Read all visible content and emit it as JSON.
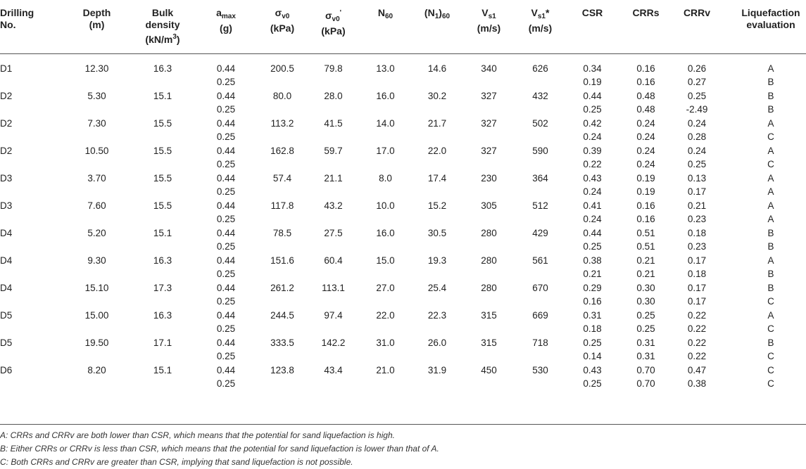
{
  "headers": [
    {
      "main": "Drilling",
      "line2": "No."
    },
    {
      "main": "Depth",
      "line2": "(m)"
    },
    {
      "main": "Bulk",
      "line2": "density",
      "line3": "(kN/m",
      "sup": "3",
      "line3_after": ")"
    },
    {
      "main": "a",
      "sub": "max",
      "line2": "(g)"
    },
    {
      "main": "σ",
      "sub": "v0",
      "line2": "(kPa)"
    },
    {
      "main": "σ",
      "sub": "v0",
      "sup": "'",
      "line2": "(kPa)"
    },
    {
      "main": "N",
      "sub": "60"
    },
    {
      "main": "(N",
      "sub": "1",
      "after": ")",
      "sub2": "60"
    },
    {
      "main": "V",
      "sub": "s1",
      "line2": "(m/s)"
    },
    {
      "main": "V",
      "sub": "s1",
      "after": "*",
      "line2": "(m/s)"
    },
    {
      "main": "CSR"
    },
    {
      "main": "CRRs"
    },
    {
      "main": "CRRv"
    },
    {
      "main": "Liquefaction",
      "line2": "evaluation"
    }
  ],
  "rows": [
    {
      "id": "D1",
      "depth": "12.30",
      "density": "16.3",
      "amax": [
        "0.44",
        "0.25"
      ],
      "sv0": "200.5",
      "sv0p": "79.8",
      "n60": "13.0",
      "n160": "14.6",
      "vs1": "340",
      "vs1s": "626",
      "csr": [
        "0.34",
        "0.19"
      ],
      "crrs": [
        "0.16",
        "0.16"
      ],
      "crrv": [
        "0.26",
        "0.27"
      ],
      "eval": [
        "A",
        "B"
      ]
    },
    {
      "id": "D2",
      "depth": "5.30",
      "density": "15.1",
      "amax": [
        "0.44",
        "0.25"
      ],
      "sv0": "80.0",
      "sv0p": "28.0",
      "n60": "16.0",
      "n160": "30.2",
      "vs1": "327",
      "vs1s": "432",
      "csr": [
        "0.44",
        "0.25"
      ],
      "crrs": [
        "0.48",
        "0.48"
      ],
      "crrv": [
        "0.25",
        "-2.49"
      ],
      "eval": [
        "B",
        "B"
      ]
    },
    {
      "id": "D2",
      "depth": "7.30",
      "density": "15.5",
      "amax": [
        "0.44",
        "0.25"
      ],
      "sv0": "113.2",
      "sv0p": "41.5",
      "n60": "14.0",
      "n160": "21.7",
      "vs1": "327",
      "vs1s": "502",
      "csr": [
        "0.42",
        "0.24"
      ],
      "crrs": [
        "0.24",
        "0.24"
      ],
      "crrv": [
        "0.24",
        "0.28"
      ],
      "eval": [
        "A",
        "C"
      ]
    },
    {
      "id": "D2",
      "depth": "10.50",
      "density": "15.5",
      "amax": [
        "0.44",
        "0.25"
      ],
      "sv0": "162.8",
      "sv0p": "59.7",
      "n60": "17.0",
      "n160": "22.0",
      "vs1": "327",
      "vs1s": "590",
      "csr": [
        "0.39",
        "0.22"
      ],
      "crrs": [
        "0.24",
        "0.24"
      ],
      "crrv": [
        "0.24",
        "0.25"
      ],
      "eval": [
        "A",
        "C"
      ]
    },
    {
      "id": "D3",
      "depth": "3.70",
      "density": "15.5",
      "amax": [
        "0.44",
        "0.25"
      ],
      "sv0": "57.4",
      "sv0p": "21.1",
      "n60": "8.0",
      "n160": "17.4",
      "vs1": "230",
      "vs1s": "364",
      "csr": [
        "0.43",
        "0.24"
      ],
      "crrs": [
        "0.19",
        "0.19"
      ],
      "crrv": [
        "0.13",
        "0.17"
      ],
      "eval": [
        "A",
        "A"
      ]
    },
    {
      "id": "D3",
      "depth": "7.60",
      "density": "15.5",
      "amax": [
        "0.44",
        "0.25"
      ],
      "sv0": "117.8",
      "sv0p": "43.2",
      "n60": "10.0",
      "n160": "15.2",
      "vs1": "305",
      "vs1s": "512",
      "csr": [
        "0.41",
        "0.24"
      ],
      "crrs": [
        "0.16",
        "0.16"
      ],
      "crrv": [
        "0.21",
        "0.23"
      ],
      "eval": [
        "A",
        "A"
      ]
    },
    {
      "id": "D4",
      "depth": "5.20",
      "density": "15.1",
      "amax": [
        "0.44",
        "0.25"
      ],
      "sv0": "78.5",
      "sv0p": "27.5",
      "n60": "16.0",
      "n160": "30.5",
      "vs1": "280",
      "vs1s": "429",
      "csr": [
        "0.44",
        "0.25"
      ],
      "crrs": [
        "0.51",
        "0.51"
      ],
      "crrv": [
        "0.18",
        "0.23"
      ],
      "eval": [
        "B",
        "B"
      ]
    },
    {
      "id": "D4",
      "depth": "9.30",
      "density": "16.3",
      "amax": [
        "0.44",
        "0.25"
      ],
      "sv0": "151.6",
      "sv0p": "60.4",
      "n60": "15.0",
      "n160": "19.3",
      "vs1": "280",
      "vs1s": "561",
      "csr": [
        "0.38",
        "0.21"
      ],
      "crrs": [
        "0.21",
        "0.21"
      ],
      "crrv": [
        "0.17",
        "0.18"
      ],
      "eval": [
        "A",
        "B"
      ]
    },
    {
      "id": "D4",
      "depth": "15.10",
      "density": "17.3",
      "amax": [
        "0.44",
        "0.25"
      ],
      "sv0": "261.2",
      "sv0p": "113.1",
      "n60": "27.0",
      "n160": "25.4",
      "vs1": "280",
      "vs1s": "670",
      "csr": [
        "0.29",
        "0.16"
      ],
      "crrs": [
        "0.30",
        "0.30"
      ],
      "crrv": [
        "0.17",
        "0.17"
      ],
      "eval": [
        "B",
        "C"
      ]
    },
    {
      "id": "D5",
      "depth": "15.00",
      "density": "16.3",
      "amax": [
        "0.44",
        "0.25"
      ],
      "sv0": "244.5",
      "sv0p": "97.4",
      "n60": "22.0",
      "n160": "22.3",
      "vs1": "315",
      "vs1s": "669",
      "csr": [
        "0.31",
        "0.18"
      ],
      "crrs": [
        "0.25",
        "0.25"
      ],
      "crrv": [
        "0.22",
        "0.22"
      ],
      "eval": [
        "A",
        "C"
      ]
    },
    {
      "id": "D5",
      "depth": "19.50",
      "density": "17.1",
      "amax": [
        "0.44",
        "0.25"
      ],
      "sv0": "333.5",
      "sv0p": "142.2",
      "n60": "31.0",
      "n160": "26.0",
      "vs1": "315",
      "vs1s": "718",
      "csr": [
        "0.25",
        "0.14"
      ],
      "crrs": [
        "0.31",
        "0.31"
      ],
      "crrv": [
        "0.22",
        "0.22"
      ],
      "eval": [
        "B",
        "C"
      ]
    },
    {
      "id": "D6",
      "depth": "8.20",
      "density": "15.1",
      "amax": [
        "0.44",
        "0.25"
      ],
      "sv0": "123.8",
      "sv0p": "43.4",
      "n60": "21.0",
      "n160": "31.9",
      "vs1": "450",
      "vs1s": "530",
      "csr": [
        "0.43",
        "0.25"
      ],
      "crrs": [
        "0.70",
        "0.70"
      ],
      "crrv": [
        "0.47",
        "0.38"
      ],
      "eval": [
        "C",
        "C"
      ]
    }
  ],
  "notes": [
    "A: CRRs and CRRv are both lower than CSR, which means that the potential for sand liquefaction is high.",
    "B: Either CRRs or CRRv is less than CSR, which means that the potential for sand liquefaction is lower than that of A.",
    "C: Both CRRs and CRRv are greater than CSR, implying that sand liquefaction is not possible."
  ]
}
